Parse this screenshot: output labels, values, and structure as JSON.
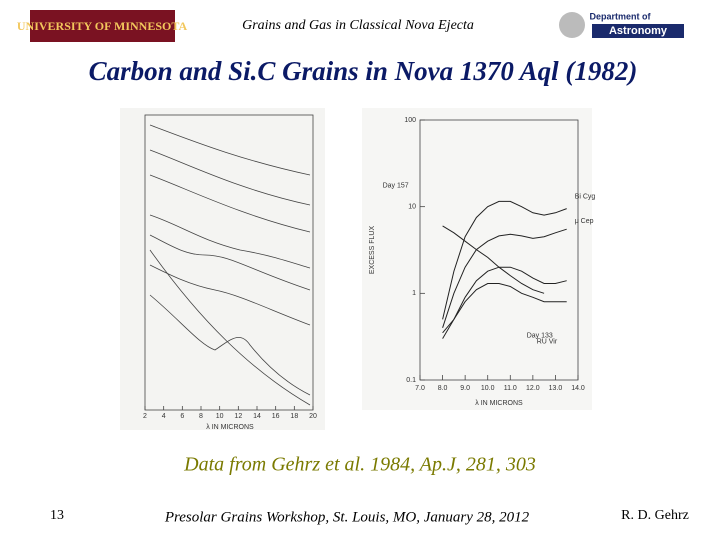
{
  "header": {
    "logo_left": "UNIVERSITY OF MINNESOTA",
    "title": "Grains and Gas in Classical Nova Ejecta",
    "logo_right": {
      "line1": "Department of",
      "line2": "Astronomy"
    }
  },
  "title": "Carbon and Si.C Grains in Nova 1370 Aql (1982)",
  "figures": {
    "left": {
      "xticks": [
        2,
        4,
        6,
        8,
        10,
        12,
        14,
        16,
        18,
        20
      ],
      "xlim": [
        2,
        20
      ],
      "xlabel": "λ IN MICRONS"
    },
    "right": {
      "type": "line",
      "ylog": true,
      "ylim": [
        0.1,
        100
      ],
      "yticks": [
        0.1,
        1,
        10,
        100
      ],
      "xlim": [
        7,
        14
      ],
      "xticks": [
        {
          "value": 7,
          "label": "7.0"
        },
        {
          "value": 8,
          "label": "8.0"
        },
        {
          "value": 9,
          "label": "9.0"
        },
        {
          "value": 10,
          "label": "10.0"
        },
        {
          "value": 11,
          "label": "11.0"
        },
        {
          "value": 12,
          "label": "12.0"
        },
        {
          "value": 13,
          "label": "13.0"
        },
        {
          "value": 14,
          "label": "14.0"
        }
      ],
      "ylabel": "EXCESS FLUX",
      "xlabel": "λ IN MICRONS",
      "x": [
        7.5,
        8,
        8.5,
        9,
        9.5,
        10,
        10.5,
        11,
        11.5,
        12,
        12.5,
        13,
        13.5
      ],
      "series": [
        {
          "name": "Bi Cyg",
          "color": "#222222",
          "values": [
            null,
            0.5,
            1.8,
            4.5,
            7.5,
            10,
            11.5,
            11.5,
            10,
            8.5,
            8,
            8.5,
            9.5
          ]
        },
        {
          "name": "Day 157",
          "color": "#222222",
          "values": [
            null,
            6,
            5,
            4,
            3.2,
            2.6,
            2,
            1.6,
            1.3,
            1.1,
            1,
            null,
            null
          ]
        },
        {
          "name": "μ Cep",
          "color": "#222222",
          "values": [
            null,
            0.4,
            1,
            2,
            3.2,
            4,
            4.6,
            4.8,
            4.6,
            4.3,
            4.5,
            5,
            5.5
          ]
        },
        {
          "name": "Day 133",
          "color": "#222222",
          "values": [
            null,
            0.35,
            0.5,
            0.9,
            1.4,
            1.8,
            2,
            2,
            1.8,
            1.5,
            1.3,
            1.3,
            1.4
          ]
        },
        {
          "name": "RU Vir",
          "color": "#222222",
          "values": [
            null,
            0.3,
            0.5,
            0.8,
            1.1,
            1.3,
            1.3,
            1.2,
            1,
            0.9,
            0.8,
            0.8,
            0.8
          ]
        }
      ]
    }
  },
  "caption": "Data from Gehrz et al. 1984, Ap.J, 281, 303",
  "footer": {
    "page": "13",
    "event": "Presolar Grains Workshop, St. Louis, MO, January 28, 2012",
    "author": "R. D. Gehrz"
  }
}
